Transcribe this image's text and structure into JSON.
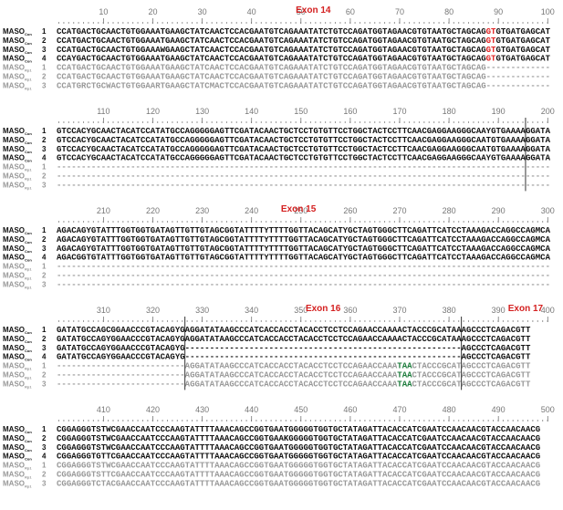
{
  "blocks": [
    {
      "ruler": [
        10,
        20,
        30,
        40,
        50,
        60,
        70,
        80,
        90,
        100
      ],
      "exons": [
        "Exon 14"
      ],
      "rows": [
        {
          "name": "MASO",
          "sub": "Con",
          "number": "1",
          "color": "#111",
          "segments": [
            {
              "text": "CCATGACTGCAACTGTGGAAATGAAGCTATCAACTCCACGAATGTCAGAAATATCTGTCCAGATGGTAGAACGTGTAATGCTAGCAG",
              "color": "#111"
            },
            {
              "text": "GT",
              "color": "#e02020"
            },
            {
              "text": "GTGATGAGCAT",
              "color": "#111"
            }
          ]
        },
        {
          "name": "MASO",
          "sub": "Con",
          "number": "2",
          "color": "#111",
          "segments": [
            {
              "text": "CCATGACTGCAACTGTGGAAATGAAGCTATCAACTCCACGAATGTCAGAAATATCTGTCCAGATGGTAGAACGTGTAATGCTAGCAG",
              "color": "#111"
            },
            {
              "text": "GT",
              "color": "#e02020"
            },
            {
              "text": "GTGATGAGCAT",
              "color": "#111"
            }
          ]
        },
        {
          "name": "MASO",
          "sub": "Con",
          "number": "3",
          "color": "#111",
          "segments": [
            {
              "text": "CCATGACTGCAACTGTGGAAAWGAAGCTATCAACTCCACGAATGTCAGAAATATCTGTCCAGATGGTAGAACGTGTAATGCTAGCAG",
              "color": "#111"
            },
            {
              "text": "GT",
              "color": "#e02020"
            },
            {
              "text": "GTGATGAGCAT",
              "color": "#111"
            }
          ]
        },
        {
          "name": "MASO",
          "sub": "Con",
          "number": "4",
          "color": "#111",
          "segments": [
            {
              "text": "CCAYGACTGCAACTGTGGAAATGAAGCTATCAACTCCACGAATGTCAGAAATATCTGTCCAGATGGTAGAACGTGTAATGCTAGCAG",
              "color": "#111"
            },
            {
              "text": "GT",
              "color": "#e02020"
            },
            {
              "text": "GTGATGAGCAT",
              "color": "#111"
            }
          ]
        },
        {
          "name": "MASO",
          "sub": "Rp1",
          "number": "1",
          "color": "#999",
          "segments": [
            {
              "text": "CCATGACTGCAACTGTGGAAATGAAGCTATCAACTCCACGAATGTCAGAAATATCTGTCCAGATGGTAGAACGTGTAATGCTAGCAG-------------",
              "color": "#999"
            }
          ]
        },
        {
          "name": "MASO",
          "sub": "Rp1",
          "number": "2",
          "color": "#999",
          "segments": [
            {
              "text": "CCATGACTGCAACTGTGGAAATGAAGCTATCAACTCCACGAATGTCAGAAATATCTGTCCAGATGGTAGAACGTGTAATGCTAGCAG-------------",
              "color": "#999"
            }
          ]
        },
        {
          "name": "MASO",
          "sub": "Rp1",
          "number": "3",
          "color": "#999",
          "segments": [
            {
              "text": "CCATGRCTGCWACTGTGGAARTGAAGCTATCMACTCCACGAATGTCAGAAATATCTGTCCAGATGGTAGAACGTGTAATGCTAGCAG-------------",
              "color": "#999"
            }
          ]
        }
      ]
    },
    {
      "ruler": [
        110,
        120,
        130,
        140,
        150,
        160,
        170,
        180,
        190,
        200
      ],
      "exons": [],
      "rows": [
        {
          "name": "MASO",
          "sub": "Con",
          "number": "1",
          "color": "#111",
          "segments": [
            {
              "text": "GTCCACYGCAACTACATCCATATGCCAGGGGGAGTTCGATACAACTGCTCCTGTGTTCCTGGCTACTCCTTCAACGAGGAAGGGCAAYGTGAAAAGGATA",
              "color": "#111"
            }
          ]
        },
        {
          "name": "MASO",
          "sub": "Con",
          "number": "2",
          "color": "#111",
          "segments": [
            {
              "text": "GTCCACYGCAACTACATCCATATGCCAGGGGGAGTTCGATACAACTGCTCCTGTGTTCCTGGCTACTCCTTCAACGAGGAAGGGCAATGTGAAAAGGATA",
              "color": "#111"
            }
          ]
        },
        {
          "name": "MASO",
          "sub": "Con",
          "number": "3",
          "color": "#111",
          "segments": [
            {
              "text": "GTCCACYGCAACTACATCCATATGCCAGGGGGAGTTCGATACAACTGCTCCTGTGTTCCTGGCTACTCCTTCAACGAGGAAGGGCAATGTGAAAAGGATA",
              "color": "#111"
            }
          ]
        },
        {
          "name": "MASO",
          "sub": "Con",
          "number": "4",
          "color": "#111",
          "segments": [
            {
              "text": "GTCCACYGCAACTACATCCATATGCCAGGGGGAGTTCGATACAACTGCTCCTGTGTTCCTGGCTACTCCTTCAACGAGGAAGGGCAAYGTGAAAAGGATA",
              "color": "#111"
            }
          ]
        },
        {
          "name": "MASO",
          "sub": "Rp1",
          "number": "1",
          "color": "#999",
          "segments": [
            {
              "text": "----------------------------------------------------------------------------------------------------",
              "color": "#999"
            }
          ]
        },
        {
          "name": "MASO",
          "sub": "Rp1",
          "number": "2",
          "color": "#999",
          "segments": [
            {
              "text": "----------------------------------------------------------------------------------------------------",
              "color": "#999"
            }
          ]
        },
        {
          "name": "MASO",
          "sub": "Rp1",
          "number": "3",
          "color": "#999",
          "segments": [
            {
              "text": "----------------------------------------------------------------------------------------------------",
              "color": "#999"
            }
          ]
        }
      ]
    },
    {
      "ruler": [
        210,
        220,
        230,
        240,
        250,
        260,
        270,
        280,
        290,
        300
      ],
      "exons": [
        "Exon 15"
      ],
      "rows": [
        {
          "name": "MASO",
          "sub": "Con",
          "number": "1",
          "color": "#111",
          "segments": [
            {
              "text": "AGACAGYGTATTTGGTGGTGATAGTTGTTGTAGCGGTATTTTYTTTTGGTTACAGCATYGCTAGTGGGCTTCAGATTCATCCTAAAGACCAGGCCAGMCA",
              "color": "#111"
            }
          ]
        },
        {
          "name": "MASO",
          "sub": "Con",
          "number": "2",
          "color": "#111",
          "segments": [
            {
              "text": "AGACAGYGTATTTGGTGGTGATAGTTGTTGTAGCGGTATTTTYTTTTGGTTACAGCATYGCTAGTGGGCTTCAGATTCATCCTAAAGACCAGGCCAGMCA",
              "color": "#111"
            }
          ]
        },
        {
          "name": "MASO",
          "sub": "Con",
          "number": "3",
          "color": "#111",
          "segments": [
            {
              "text": "AGACAGYGTATTTGGTGGTGATAGTTGTTGTAGCGGTATTTTYTTTTGGTTACAGCATYGCTAGTGGGCTTCAGATTCATCCTAAAGACCAGGCCAGMCA",
              "color": "#111"
            }
          ]
        },
        {
          "name": "MASO",
          "sub": "Con",
          "number": "4",
          "color": "#111",
          "segments": [
            {
              "text": "AGACGGTGTATTTGGTGGTGATAGTTGTTGTAGCGGTATTTTYTTTTGGTTACAGCATYGCTAGTGGGCTTCAGATTCATCCTAAAGACCAGGCCAGMCA",
              "color": "#111"
            }
          ]
        },
        {
          "name": "MASO",
          "sub": "Rp1",
          "number": "1",
          "color": "#999",
          "segments": [
            {
              "text": "----------------------------------------------------------------------------------------------------",
              "color": "#999"
            }
          ]
        },
        {
          "name": "MASO",
          "sub": "Rp1",
          "number": "2",
          "color": "#999",
          "segments": [
            {
              "text": "----------------------------------------------------------------------------------------------------",
              "color": "#999"
            }
          ]
        },
        {
          "name": "MASO",
          "sub": "Rp1",
          "number": "3",
          "color": "#999",
          "segments": [
            {
              "text": "----------------------------------------------------------------------------------------------------",
              "color": "#999"
            }
          ]
        }
      ]
    },
    {
      "ruler": [
        310,
        320,
        330,
        340,
        350,
        360,
        370,
        380,
        390,
        400
      ],
      "exons": [
        "Exon 16",
        "Exon 17"
      ],
      "rows": [
        {
          "name": "MASO",
          "sub": "Con",
          "number": "1",
          "color": "#111",
          "segments": [
            {
              "text": "GATATGCCAGCGGAACCCGTACAGYGAGGATATAAGCCCATCACCACCTACACCTCCTCCAGAACCAAAACTACCCGCATAAAGCCCTCAGACGTT",
              "color": "#111"
            }
          ]
        },
        {
          "name": "MASO",
          "sub": "Con",
          "number": "2",
          "color": "#111",
          "segments": [
            {
              "text": "GATATGCCAGYGGAACCCGTACAGYGAGGATATAAGCCCATCACCACCTACACCTCCTCCAGAACCAAAACTACCCGCATAAAGCCCTCAGACGTT",
              "color": "#111"
            }
          ]
        },
        {
          "name": "MASO",
          "sub": "Con",
          "number": "3",
          "color": "#111",
          "segments": [
            {
              "text": "GATATGCCAGYGGAACCCGTACAGYG--------------------------------------------------------AGCCCTCAGACGTT",
              "color": "#111"
            }
          ]
        },
        {
          "name": "MASO",
          "sub": "Con",
          "number": "4",
          "color": "#111",
          "segments": [
            {
              "text": "GATATGCCAGYGGAACCCGTACAGYG--------------------------------------------------------AGCCCTCAGACGTT",
              "color": "#111"
            }
          ]
        },
        {
          "name": "MASO",
          "sub": "Rp1",
          "number": "1",
          "color": "#999",
          "segments": [
            {
              "text": "--------------------------AGGATATAAGCCCATCACCACCTACACCTCCTCCAGAACCAAA",
              "color": "#999"
            },
            {
              "text": "TAA",
              "color": "#1a7a3a"
            },
            {
              "text": "CTACCCGCATAGCCCTCAGACGTT",
              "color": "#999"
            }
          ]
        },
        {
          "name": "MASO",
          "sub": "Rp1",
          "number": "2",
          "color": "#999",
          "segments": [
            {
              "text": "--------------------------AGGATATAAGCCCATCACCACCTACACCTCCTCCAGAACCAAA",
              "color": "#999"
            },
            {
              "text": "TAA",
              "color": "#1a7a3a"
            },
            {
              "text": "CTACCCGCATAGCCCTCAGACGTT",
              "color": "#999"
            }
          ]
        },
        {
          "name": "MASO",
          "sub": "Rp1",
          "number": "3",
          "color": "#999",
          "segments": [
            {
              "text": "--------------------------AGGATATAAGCCCATCACCACCTACACCTCCTCCAGAACCAAA",
              "color": "#999"
            },
            {
              "text": "TAA",
              "color": "#1a7a3a"
            },
            {
              "text": "CTACCCGCATAGCCCTCAGACGTT",
              "color": "#999"
            }
          ]
        }
      ]
    },
    {
      "ruler": [
        410,
        420,
        430,
        440,
        450,
        460,
        470,
        480,
        490,
        500
      ],
      "exons": [],
      "rows": [
        {
          "name": "MASO",
          "sub": "Con",
          "number": "1",
          "color": "#111",
          "segments": [
            {
              "text": "CGGAGGGTSTWCGAACCAATCCCAAGTATTTTAAACAGCCGGTGAATGGGGGTGGTGCTATAGATTACACCATCGAATCCAACAACGTACCAACAACG",
              "color": "#111"
            }
          ]
        },
        {
          "name": "MASO",
          "sub": "Con",
          "number": "2",
          "color": "#111",
          "segments": [
            {
              "text": "CGGAGGGTSTWCGAACCAATCCCAAGTATTTTAAACAGCCGGTGAAKGGGGGTGGTGCTATAGATTACACCATCGAATCCAACAACGTACCAACAACG",
              "color": "#111"
            }
          ]
        },
        {
          "name": "MASO",
          "sub": "Con",
          "number": "3",
          "color": "#111",
          "segments": [
            {
              "text": "CGGAGGGTSTWCGAACCAATCCCAAGTATTTTAAACAGCCGGTGAATGGGGGTGGTGCTATAGATTACACCATCGAATCCAACAACGTACCAACAACG",
              "color": "#111"
            }
          ]
        },
        {
          "name": "MASO",
          "sub": "Con",
          "number": "4",
          "color": "#111",
          "segments": [
            {
              "text": "CGGAGGGTGTTCGAACCAATCCCAAGTATTTTAAACAGCCGGTGAATGGGGGTGGTGCTATAGATTACACCATCGAATCCAACAACGTACCAACAACG",
              "color": "#111"
            }
          ]
        },
        {
          "name": "MASO",
          "sub": "Rp1",
          "number": "1",
          "color": "#999",
          "segments": [
            {
              "text": "CGGAGGGTSTWCGAACCAATCCCAAGTATTTTAAACAGCCGGTGAATGGGGGTGGTGCTATAGATTACACCATCGAATCCAACAACGTACCAACAACG",
              "color": "#999"
            }
          ]
        },
        {
          "name": "MASO",
          "sub": "Rp1",
          "number": "2",
          "color": "#999",
          "segments": [
            {
              "text": "CGGAGGGTSTTCGAACCAATCCCAAGTATTTTAAACAGCCGGTGAATGGGGGTGGTGCTATAGATTACACCATCGAATCCAACAACGTACCAACAACG",
              "color": "#999"
            }
          ]
        },
        {
          "name": "MASO",
          "sub": "Rp1",
          "number": "3",
          "color": "#999",
          "segments": [
            {
              "text": "CGGAGGGTCTACGAACCAATCCCAAGTATTTTAAACAGCCGGTGAATGGGGGTGGTGCTATAGATTACACCATCGAATCCAACAACGTACCAACAACG",
              "color": "#999"
            }
          ]
        }
      ]
    }
  ]
}
